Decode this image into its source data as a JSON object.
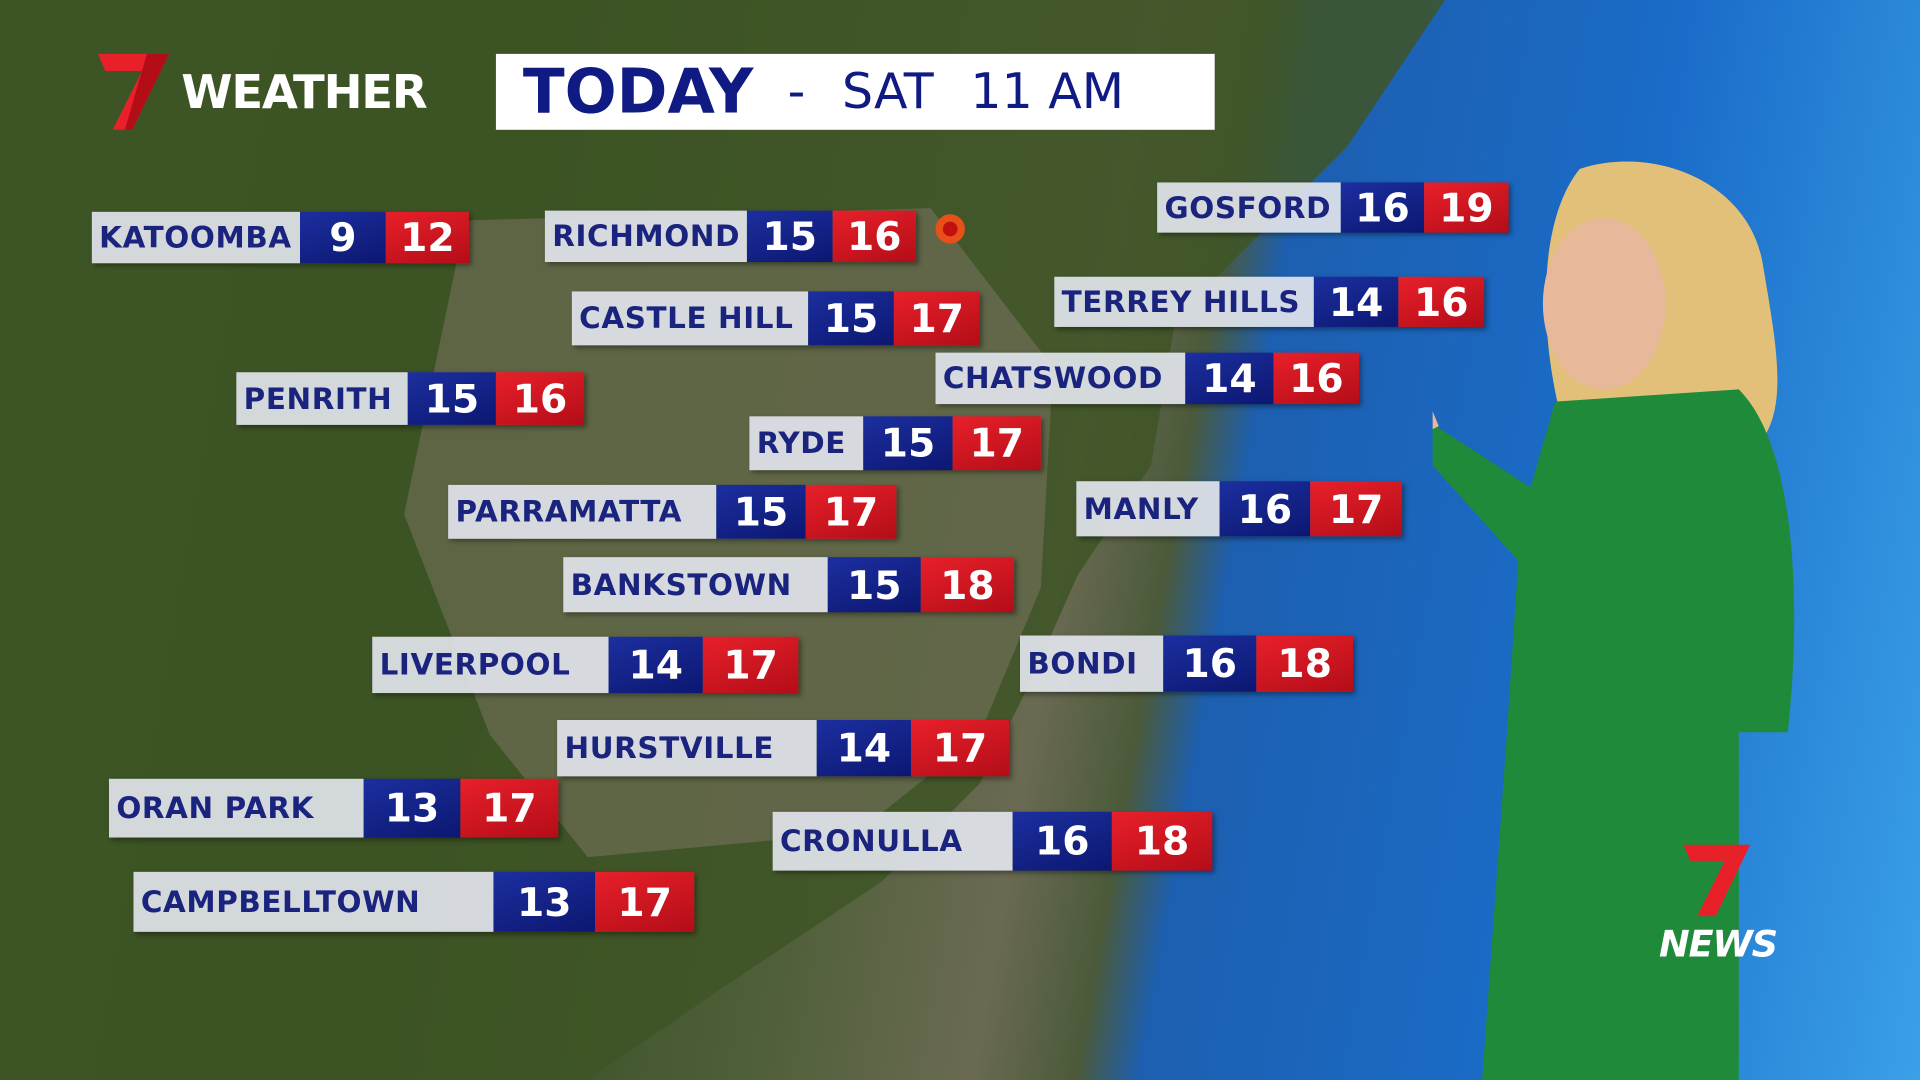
{
  "brand": {
    "logo_text": "WEATHER",
    "news_text": "NEWS",
    "logo_number": "7",
    "accent": "#e8202a",
    "navy": "#0f1a82"
  },
  "header": {
    "title": "TODAY",
    "separator": "-",
    "day": "SAT",
    "time": "11 AM"
  },
  "cities": [
    {
      "name": "KATOOMBA",
      "min": "9",
      "max": "12"
    },
    {
      "name": "RICHMOND",
      "min": "15",
      "max": "16"
    },
    {
      "name": "CASTLE HILL",
      "min": "15",
      "max": "17"
    },
    {
      "name": "PENRITH",
      "min": "15",
      "max": "16"
    },
    {
      "name": "RYDE",
      "min": "15",
      "max": "17"
    },
    {
      "name": "PARRAMATTA",
      "min": "15",
      "max": "17"
    },
    {
      "name": "BANKSTOWN",
      "min": "15",
      "max": "18"
    },
    {
      "name": "LIVERPOOL",
      "min": "14",
      "max": "17"
    },
    {
      "name": "HURSTVILLE",
      "min": "14",
      "max": "17"
    },
    {
      "name": "ORAN PARK",
      "min": "13",
      "max": "17"
    },
    {
      "name": "CAMPBELLTOWN",
      "min": "13",
      "max": "17"
    },
    {
      "name": "GOSFORD",
      "min": "16",
      "max": "19"
    },
    {
      "name": "TERREY HILLS",
      "min": "14",
      "max": "16"
    },
    {
      "name": "CHATSWOOD",
      "min": "14",
      "max": "16"
    },
    {
      "name": "MANLY",
      "min": "16",
      "max": "17"
    },
    {
      "name": "BONDI",
      "min": "16",
      "max": "18"
    },
    {
      "name": "CRONULLA",
      "min": "16",
      "max": "18"
    }
  ]
}
